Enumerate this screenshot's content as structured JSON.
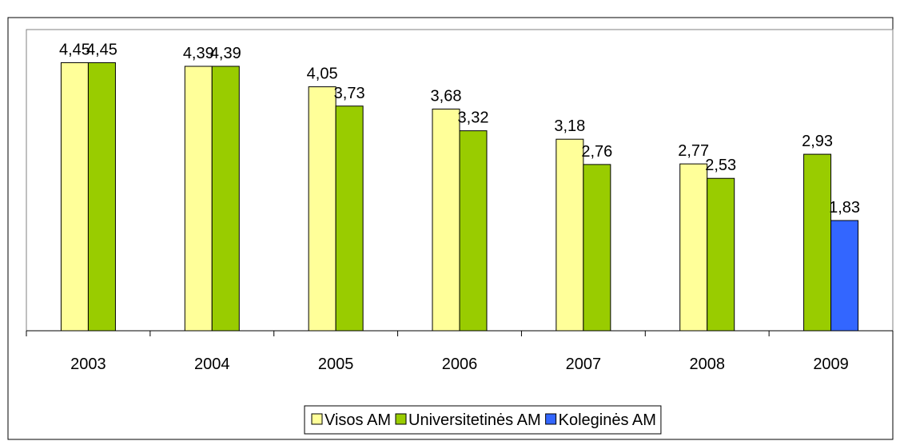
{
  "chart_data": {
    "type": "bar",
    "categories": [
      "2003",
      "2004",
      "2005",
      "2006",
      "2007",
      "2008",
      "2009"
    ],
    "series": [
      {
        "name": "Visos AM",
        "color": "#ffff99",
        "values": [
          4.45,
          4.39,
          4.05,
          3.68,
          3.18,
          2.77,
          null
        ],
        "value_labels": [
          "4,45",
          "4,39",
          "4,05",
          "3,68",
          "3,18",
          "2,77",
          null
        ]
      },
      {
        "name": "Universitetinės AM",
        "color": "#99cc00",
        "values": [
          4.45,
          4.39,
          3.73,
          3.32,
          2.76,
          2.53,
          2.93
        ],
        "value_labels": [
          "4,45",
          "4,39",
          "3,73",
          "3,32",
          "2,76",
          "2,53",
          "2,93"
        ]
      },
      {
        "name": "Koleginės AM",
        "color": "#3366ff",
        "values": [
          null,
          null,
          null,
          null,
          null,
          null,
          1.83
        ],
        "value_labels": [
          null,
          null,
          null,
          null,
          null,
          null,
          "1,83"
        ]
      }
    ],
    "ylim": [
      0,
      5
    ],
    "legend": "bottom"
  }
}
